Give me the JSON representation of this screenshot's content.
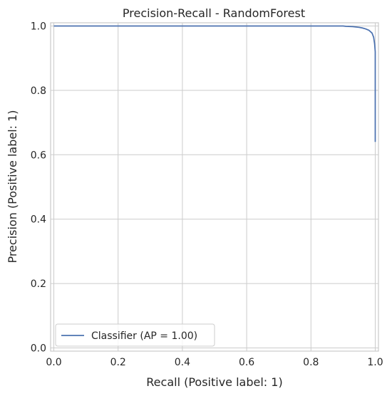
{
  "chart_data": {
    "type": "line",
    "title": "Precision-Recall - RandomForest",
    "xlabel": "Recall (Positive label: 1)",
    "ylabel": "Precision (Positive label: 1)",
    "xlim": [
      -0.01,
      1.01
    ],
    "ylim": [
      -0.01,
      1.01
    ],
    "xticks": [
      "0.0",
      "0.2",
      "0.4",
      "0.6",
      "0.8",
      "1.0"
    ],
    "yticks": [
      "0.0",
      "0.2",
      "0.4",
      "0.6",
      "0.8",
      "1.0"
    ],
    "grid": true,
    "legend": {
      "placement": "lower-left"
    },
    "series": [
      {
        "name": "Classifier (AP = 1.00)",
        "color": "#4c72b0",
        "x": [
          0.0,
          0.1,
          0.3,
          0.5,
          0.7,
          0.9,
          0.91,
          0.93,
          0.95,
          0.96,
          0.97,
          0.98,
          0.99,
          0.995,
          0.998,
          1.0,
          1.0,
          1.0
        ],
        "y": [
          1.0,
          1.0,
          1.0,
          1.0,
          1.0,
          1.0,
          0.999,
          0.998,
          0.996,
          0.994,
          0.991,
          0.987,
          0.978,
          0.965,
          0.945,
          0.92,
          0.8,
          0.64
        ]
      }
    ]
  }
}
